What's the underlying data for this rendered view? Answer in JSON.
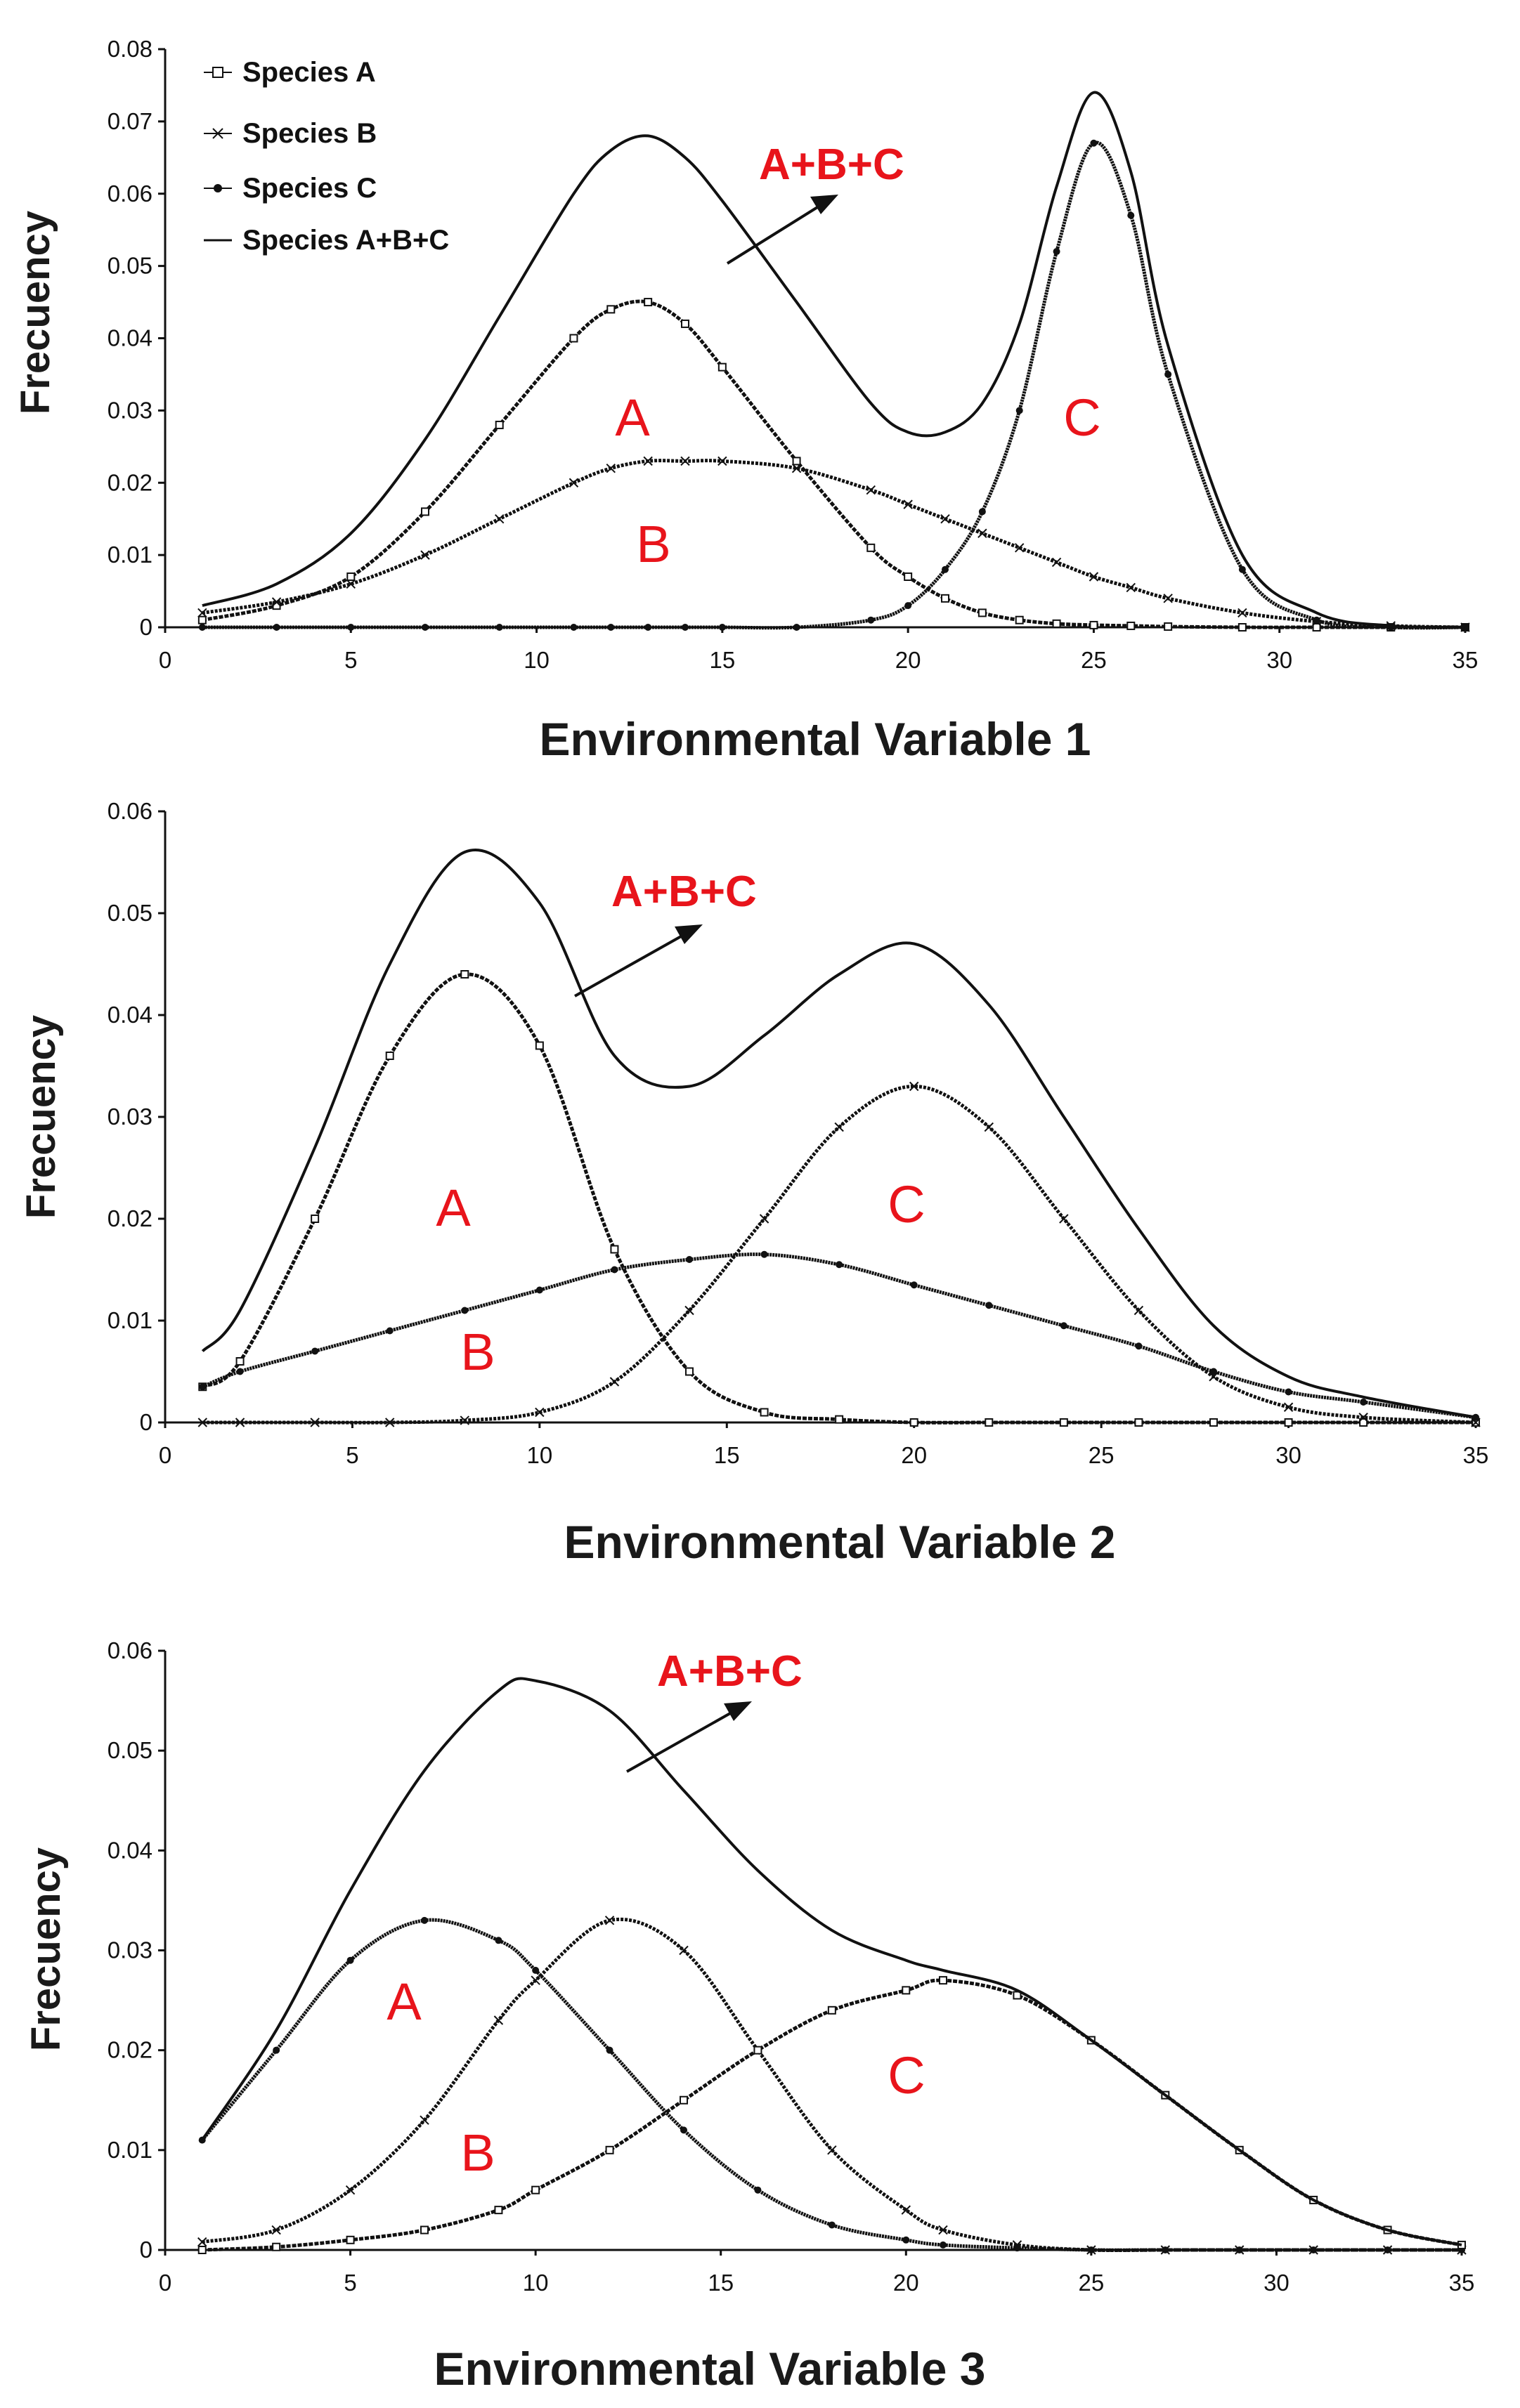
{
  "chart_data": [
    {
      "type": "line",
      "xlabel": "Environmental Variable 1",
      "ylabel": "Frecuency",
      "xlim": [
        0,
        35
      ],
      "ylim": [
        0,
        0.08
      ],
      "xticks": [
        "0",
        "5",
        "10",
        "15",
        "20",
        "25",
        "30",
        "35"
      ],
      "yticks": [
        "0",
        "0.01",
        "0.02",
        "0.03",
        "0.04",
        "0.05",
        "0.06",
        "0.07",
        "0.08"
      ],
      "legend": [
        {
          "label": "Species A",
          "marker": "square"
        },
        {
          "label": "Species B",
          "marker": "x"
        },
        {
          "label": "Species C",
          "marker": "dot"
        },
        {
          "label": "Species A+B+C",
          "marker": "line"
        }
      ],
      "legend_position": "top-left",
      "sum_annotation": "A+B+C",
      "curve_labels": [
        "A",
        "B",
        "C"
      ],
      "x": [
        1,
        3,
        5,
        7,
        9,
        11,
        12,
        13,
        14,
        15,
        17,
        19,
        20,
        21,
        22,
        23,
        24,
        25,
        26,
        27,
        29,
        31,
        33,
        35
      ],
      "series": [
        {
          "name": "Species A",
          "marker": "square",
          "values": [
            0.001,
            0.003,
            0.007,
            0.016,
            0.028,
            0.04,
            0.044,
            0.045,
            0.042,
            0.036,
            0.023,
            0.011,
            0.007,
            0.004,
            0.002,
            0.001,
            0.0005,
            0.0003,
            0.0002,
            0.0001,
            0,
            0,
            0,
            0
          ]
        },
        {
          "name": "Species B",
          "marker": "x",
          "values": [
            0.002,
            0.0035,
            0.006,
            0.01,
            0.015,
            0.02,
            0.022,
            0.023,
            0.023,
            0.023,
            0.022,
            0.019,
            0.017,
            0.015,
            0.013,
            0.011,
            0.009,
            0.007,
            0.0055,
            0.004,
            0.002,
            0.0008,
            0.0002,
            0
          ]
        },
        {
          "name": "Species C",
          "marker": "dot",
          "values": [
            0,
            0,
            0,
            0,
            0,
            0,
            0,
            0,
            0,
            0,
            0,
            0.001,
            0.003,
            0.008,
            0.016,
            0.03,
            0.052,
            0.067,
            0.057,
            0.035,
            0.008,
            0.001,
            0,
            0
          ]
        },
        {
          "name": "Species A+B+C",
          "marker": "line",
          "values": [
            0.003,
            0.006,
            0.013,
            0.026,
            0.043,
            0.06,
            0.066,
            0.068,
            0.065,
            0.059,
            0.045,
            0.031,
            0.027,
            0.027,
            0.031,
            0.042,
            0.061,
            0.074,
            0.063,
            0.039,
            0.01,
            0.002,
            0.0002,
            0
          ]
        }
      ]
    },
    {
      "type": "line",
      "xlabel": "Environmental Variable 2",
      "ylabel": "Frecuency",
      "xlim": [
        0,
        35
      ],
      "ylim": [
        0,
        0.06
      ],
      "xticks": [
        "0",
        "5",
        "10",
        "15",
        "20",
        "25",
        "30",
        "35"
      ],
      "yticks": [
        "0",
        "0.01",
        "0.02",
        "0.03",
        "0.04",
        "0.05",
        "0.06"
      ],
      "sum_annotation": "A+B+C",
      "curve_labels": [
        "A",
        "B",
        "C"
      ],
      "x": [
        1,
        2,
        4,
        6,
        8,
        10,
        12,
        14,
        16,
        18,
        20,
        22,
        24,
        26,
        28,
        30,
        32,
        35
      ],
      "series": [
        {
          "name": "Species A",
          "marker": "square",
          "values": [
            0.0035,
            0.006,
            0.02,
            0.036,
            0.044,
            0.037,
            0.017,
            0.005,
            0.001,
            0.0003,
            0,
            0,
            0,
            0,
            0,
            0,
            0,
            0
          ]
        },
        {
          "name": "Species B",
          "marker": "dot",
          "values": [
            0.0035,
            0.005,
            0.007,
            0.009,
            0.011,
            0.013,
            0.015,
            0.016,
            0.0165,
            0.0155,
            0.0135,
            0.0115,
            0.0095,
            0.0075,
            0.005,
            0.003,
            0.002,
            0.0005
          ]
        },
        {
          "name": "Species C",
          "marker": "x",
          "values": [
            0,
            0,
            0,
            0,
            0.0002,
            0.001,
            0.004,
            0.011,
            0.02,
            0.029,
            0.033,
            0.029,
            0.02,
            0.011,
            0.0045,
            0.0015,
            0.0005,
            0
          ]
        },
        {
          "name": "Species A+B+C",
          "marker": "line",
          "values": [
            0.007,
            0.011,
            0.027,
            0.045,
            0.056,
            0.051,
            0.036,
            0.033,
            0.038,
            0.044,
            0.047,
            0.041,
            0.03,
            0.019,
            0.0095,
            0.0045,
            0.0025,
            0.0005
          ]
        }
      ]
    },
    {
      "type": "line",
      "xlabel": "Environmental Variable 3",
      "ylabel": "Frecuency",
      "xlim": [
        0,
        35
      ],
      "ylim": [
        0,
        0.06
      ],
      "xticks": [
        "0",
        "5",
        "10",
        "15",
        "20",
        "25",
        "30",
        "35"
      ],
      "yticks": [
        "0",
        "0.01",
        "0.02",
        "0.03",
        "0.04",
        "0.05",
        "0.06"
      ],
      "sum_annotation": "A+B+C",
      "curve_labels": [
        "A",
        "B",
        "C"
      ],
      "x": [
        1,
        3,
        5,
        7,
        9,
        10,
        12,
        14,
        16,
        18,
        20,
        21,
        23,
        25,
        27,
        29,
        31,
        33,
        35
      ],
      "series": [
        {
          "name": "Species A",
          "marker": "dot",
          "values": [
            0.011,
            0.02,
            0.029,
            0.033,
            0.031,
            0.028,
            0.02,
            0.012,
            0.006,
            0.0025,
            0.001,
            0.0005,
            0.0002,
            0,
            0,
            0,
            0,
            0,
            0
          ]
        },
        {
          "name": "Species B",
          "marker": "x",
          "values": [
            0.0008,
            0.002,
            0.006,
            0.013,
            0.023,
            0.027,
            0.033,
            0.03,
            0.02,
            0.01,
            0.004,
            0.002,
            0.0005,
            0,
            0,
            0,
            0,
            0,
            0
          ]
        },
        {
          "name": "Species C",
          "marker": "square",
          "values": [
            0,
            0.0003,
            0.001,
            0.002,
            0.004,
            0.006,
            0.01,
            0.015,
            0.02,
            0.024,
            0.026,
            0.027,
            0.0255,
            0.021,
            0.0155,
            0.01,
            0.005,
            0.002,
            0.0005
          ]
        },
        {
          "name": "Species A+B+C",
          "marker": "line",
          "values": [
            0.011,
            0.022,
            0.036,
            0.048,
            0.056,
            0.057,
            0.054,
            0.046,
            0.038,
            0.032,
            0.029,
            0.028,
            0.026,
            0.021,
            0.0155,
            0.01,
            0.005,
            0.002,
            0.0005
          ]
        }
      ]
    }
  ]
}
